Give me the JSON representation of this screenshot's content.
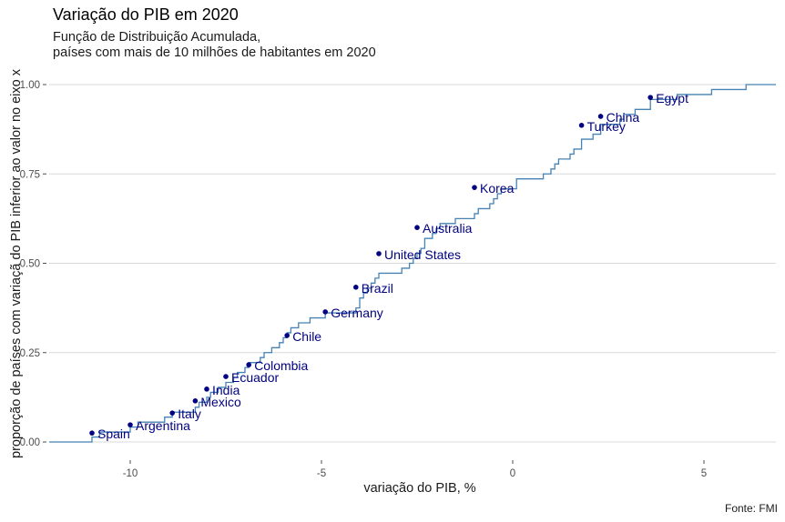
{
  "chart_data": {
    "type": "line",
    "subtype": "ecdf-step",
    "title": "Variação do PIB em 2020",
    "subtitle": [
      "Função de Distribuição Acumulada,",
      "países com mais de 10 milhões de habitantes em 2020"
    ],
    "xlabel": "variação do PIB, %",
    "ylabel": "proporção de países com variaçã do PIB inferior ao valor no eixo x",
    "caption": "Fonte: FMI",
    "xlim": [
      -12.1,
      6.9
    ],
    "ylim": [
      0,
      1
    ],
    "xticks": [
      -10,
      -5,
      0,
      5
    ],
    "xtick_labels": [
      "-10",
      "-5",
      "0",
      "5"
    ],
    "yticks": [
      0,
      0.25,
      0.5,
      0.75,
      1.0
    ],
    "ytick_labels": [
      "0.00",
      "0.25",
      "0.50",
      "0.75",
      "1.00"
    ],
    "grid": "horizontal-major",
    "line_color": "#4682b4",
    "point_color": "#000080",
    "label_color": "#000080",
    "ecdf_values": [
      -11.0,
      -10.8,
      -10.0,
      -9.8,
      -9.1,
      -8.9,
      -8.3,
      -8.2,
      -8.0,
      -7.9,
      -7.7,
      -7.5,
      -7.3,
      -7.2,
      -7.0,
      -6.9,
      -6.6,
      -6.5,
      -6.3,
      -6.1,
      -6.0,
      -5.9,
      -5.8,
      -5.6,
      -5.3,
      -4.9,
      -4.1,
      -4.0,
      -4.0,
      -3.9,
      -3.8,
      -3.7,
      -3.6,
      -3.5,
      -2.9,
      -2.7,
      -2.6,
      -2.5,
      -2.4,
      -2.3,
      -2.3,
      -2.1,
      -2.0,
      -1.9,
      -1.5,
      -1.0,
      -0.9,
      -0.6,
      -0.5,
      -0.4,
      -0.3,
      0.1,
      0.1,
      0.8,
      1.0,
      1.1,
      1.2,
      1.5,
      1.6,
      1.8,
      1.8,
      2.1,
      2.3,
      2.3,
      2.8,
      2.9,
      3.2,
      3.6,
      3.6,
      4.3,
      5.2,
      6.1
    ],
    "labeled_points": [
      {
        "country": "Spain",
        "x": -11.0,
        "y": 0.025
      },
      {
        "country": "Argentina",
        "x": -10.0,
        "y": 0.048
      },
      {
        "country": "Italy",
        "x": -8.9,
        "y": 0.081
      },
      {
        "country": "Mexico",
        "x": -8.3,
        "y": 0.115
      },
      {
        "country": "India",
        "x": -8.0,
        "y": 0.148
      },
      {
        "country": "Ecuador",
        "x": -7.5,
        "y": 0.183
      },
      {
        "country": "Colombia",
        "x": -6.9,
        "y": 0.216
      },
      {
        "country": "Chile",
        "x": -5.9,
        "y": 0.298
      },
      {
        "country": "Germany",
        "x": -4.9,
        "y": 0.364
      },
      {
        "country": "Brazil",
        "x": -4.1,
        "y": 0.433
      },
      {
        "country": "United States",
        "x": -3.5,
        "y": 0.527
      },
      {
        "country": "Australia",
        "x": -2.5,
        "y": 0.6
      },
      {
        "country": "Korea",
        "x": -1.0,
        "y": 0.712
      },
      {
        "country": "Turkey",
        "x": 1.8,
        "y": 0.886
      },
      {
        "country": "China",
        "x": 2.3,
        "y": 0.911
      },
      {
        "country": "Egypt",
        "x": 3.6,
        "y": 0.964
      }
    ]
  }
}
